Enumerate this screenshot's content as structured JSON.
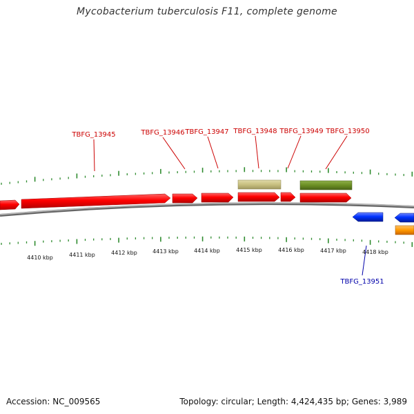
{
  "title": "Mycobacterium tuberculosis F11, complete genome",
  "footer": {
    "accession": "Accession: NC_009565",
    "summary": "Topology: circular; Length: 4,424,435 bp; Genes: 3,989"
  },
  "colors": {
    "forward_gene": "#ff0000",
    "reverse_gene": "#0033ff",
    "orange_feature": "#ff9900",
    "khaki_feature": "#c8c080",
    "olive_feature": "#6b8e23",
    "backbone": "#888888",
    "ticks": "#2e8b2e",
    "forward_label": "#cc0000",
    "reverse_label": "#0000aa"
  },
  "scale": {
    "unit": "kbp",
    "labels": [
      "4410 kbp",
      "4411 kbp",
      "4412 kbp",
      "4413 kbp",
      "4414 kbp",
      "4415 kbp",
      "4416 kbp",
      "4417 kbp",
      "4418 kbp"
    ]
  },
  "gene_labels": {
    "forward": [
      "TBFG_13945",
      "TBFG_13946",
      "TBFG_13947",
      "TBFG_13948",
      "TBFG_13949",
      "TBFG_13950"
    ],
    "reverse": [
      "TBFG_13951"
    ]
  }
}
